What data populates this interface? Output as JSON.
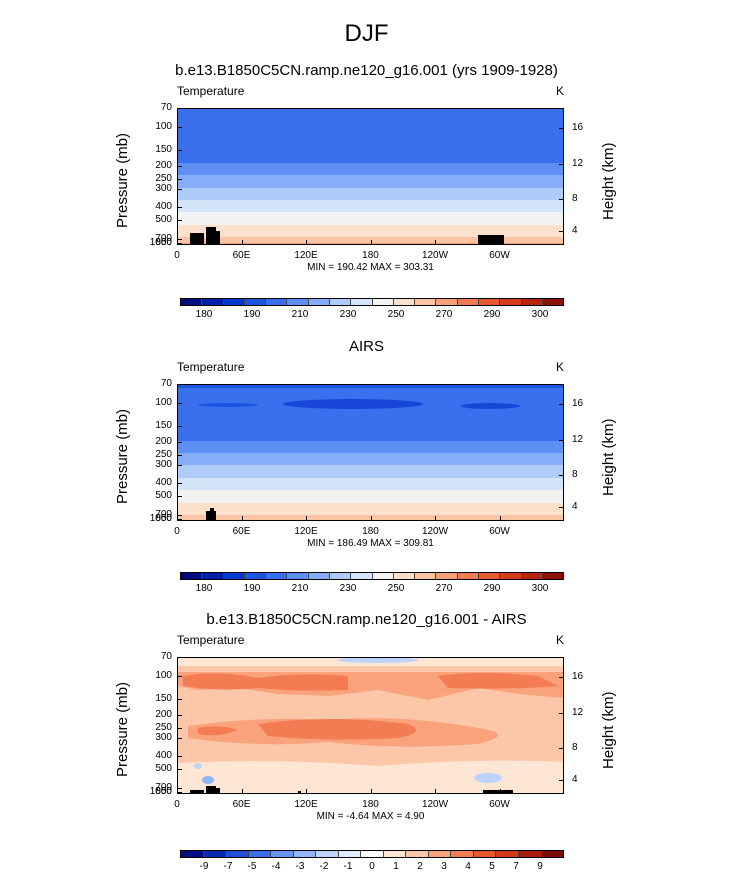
{
  "title": "DJF",
  "colors": {
    "temp": [
      "#000d80",
      "#0020aa",
      "#0039cc",
      "#1c55e0",
      "#3a70ee",
      "#5e8ff5",
      "#86aef8",
      "#afcbfa",
      "#d4e4fb",
      "#f2f2f2",
      "#fde0cc",
      "#fbc4a5",
      "#f7a07a",
      "#f27c52",
      "#e75a30",
      "#d43c1a",
      "#b82410",
      "#8c1208"
    ],
    "diff": [
      "#000d80",
      "#0a2ab0",
      "#1e4fd6",
      "#3a70ee",
      "#6793f5",
      "#93b5f8",
      "#bdd3fb",
      "#e0ebfd",
      "#ffffff",
      "#fde6d4",
      "#fcc7a8",
      "#f9a27c",
      "#f47c53",
      "#e85730",
      "#d03816",
      "#a81c0a",
      "#7a0c04"
    ]
  },
  "chart_data": [
    {
      "type": "heatmap",
      "title": "b.e13.B1850C5CN.ramp.ne120_g16.001 (yrs 1909-1928)",
      "variable": "Temperature",
      "units": "K",
      "ylabel": "Pressure (mb)",
      "ylabel_right": "Height (km)",
      "y_pressure_ticks": [
        "70",
        "100",
        "150",
        "200",
        "250",
        "300",
        "400",
        "500",
        "700",
        "850",
        "1000"
      ],
      "y_height_ticks": [
        "16",
        "12",
        "8",
        "4"
      ],
      "x_ticks": [
        "0",
        "60E",
        "120E",
        "180",
        "120W",
        "60W"
      ],
      "min_label": "MIN = 190.42",
      "max_label": "MAX = 303.31",
      "min": 190.42,
      "max": 303.31,
      "colorbar_labels": [
        "180",
        "190",
        "210",
        "230",
        "250",
        "270",
        "290",
        "300"
      ],
      "colorbar_scale": "temp"
    },
    {
      "type": "heatmap",
      "title": "AIRS",
      "variable": "Temperature",
      "units": "K",
      "ylabel": "Pressure (mb)",
      "ylabel_right": "Height (km)",
      "y_pressure_ticks": [
        "70",
        "100",
        "150",
        "200",
        "250",
        "300",
        "400",
        "500",
        "700",
        "850",
        "1000"
      ],
      "y_height_ticks": [
        "16",
        "12",
        "8",
        "4"
      ],
      "x_ticks": [
        "0",
        "60E",
        "120E",
        "180",
        "120W",
        "60W"
      ],
      "min_label": "MIN = 186.49",
      "max_label": "MAX = 309.81",
      "min": 186.49,
      "max": 309.81,
      "colorbar_labels": [
        "180",
        "190",
        "210",
        "230",
        "250",
        "270",
        "290",
        "300"
      ],
      "colorbar_scale": "temp"
    },
    {
      "type": "heatmap",
      "title": "b.e13.B1850C5CN.ramp.ne120_g16.001 - AIRS",
      "variable": "Temperature",
      "units": "K",
      "ylabel": "Pressure (mb)",
      "ylabel_right": "Height (km)",
      "y_pressure_ticks": [
        "70",
        "100",
        "150",
        "200",
        "250",
        "300",
        "400",
        "500",
        "700",
        "850",
        "1000"
      ],
      "y_height_ticks": [
        "16",
        "12",
        "8",
        "4"
      ],
      "x_ticks": [
        "0",
        "60E",
        "120E",
        "180",
        "120W",
        "60W"
      ],
      "min_label": "MIN = -4.64",
      "max_label": "MAX = 4.90",
      "min": -4.64,
      "max": 4.9,
      "colorbar_labels": [
        "-9",
        "-7",
        "-5",
        "-4",
        "-3",
        "-2",
        "-1",
        "0",
        "1",
        "2",
        "3",
        "4",
        "5",
        "7",
        "9"
      ],
      "colorbar_scale": "diff"
    }
  ]
}
